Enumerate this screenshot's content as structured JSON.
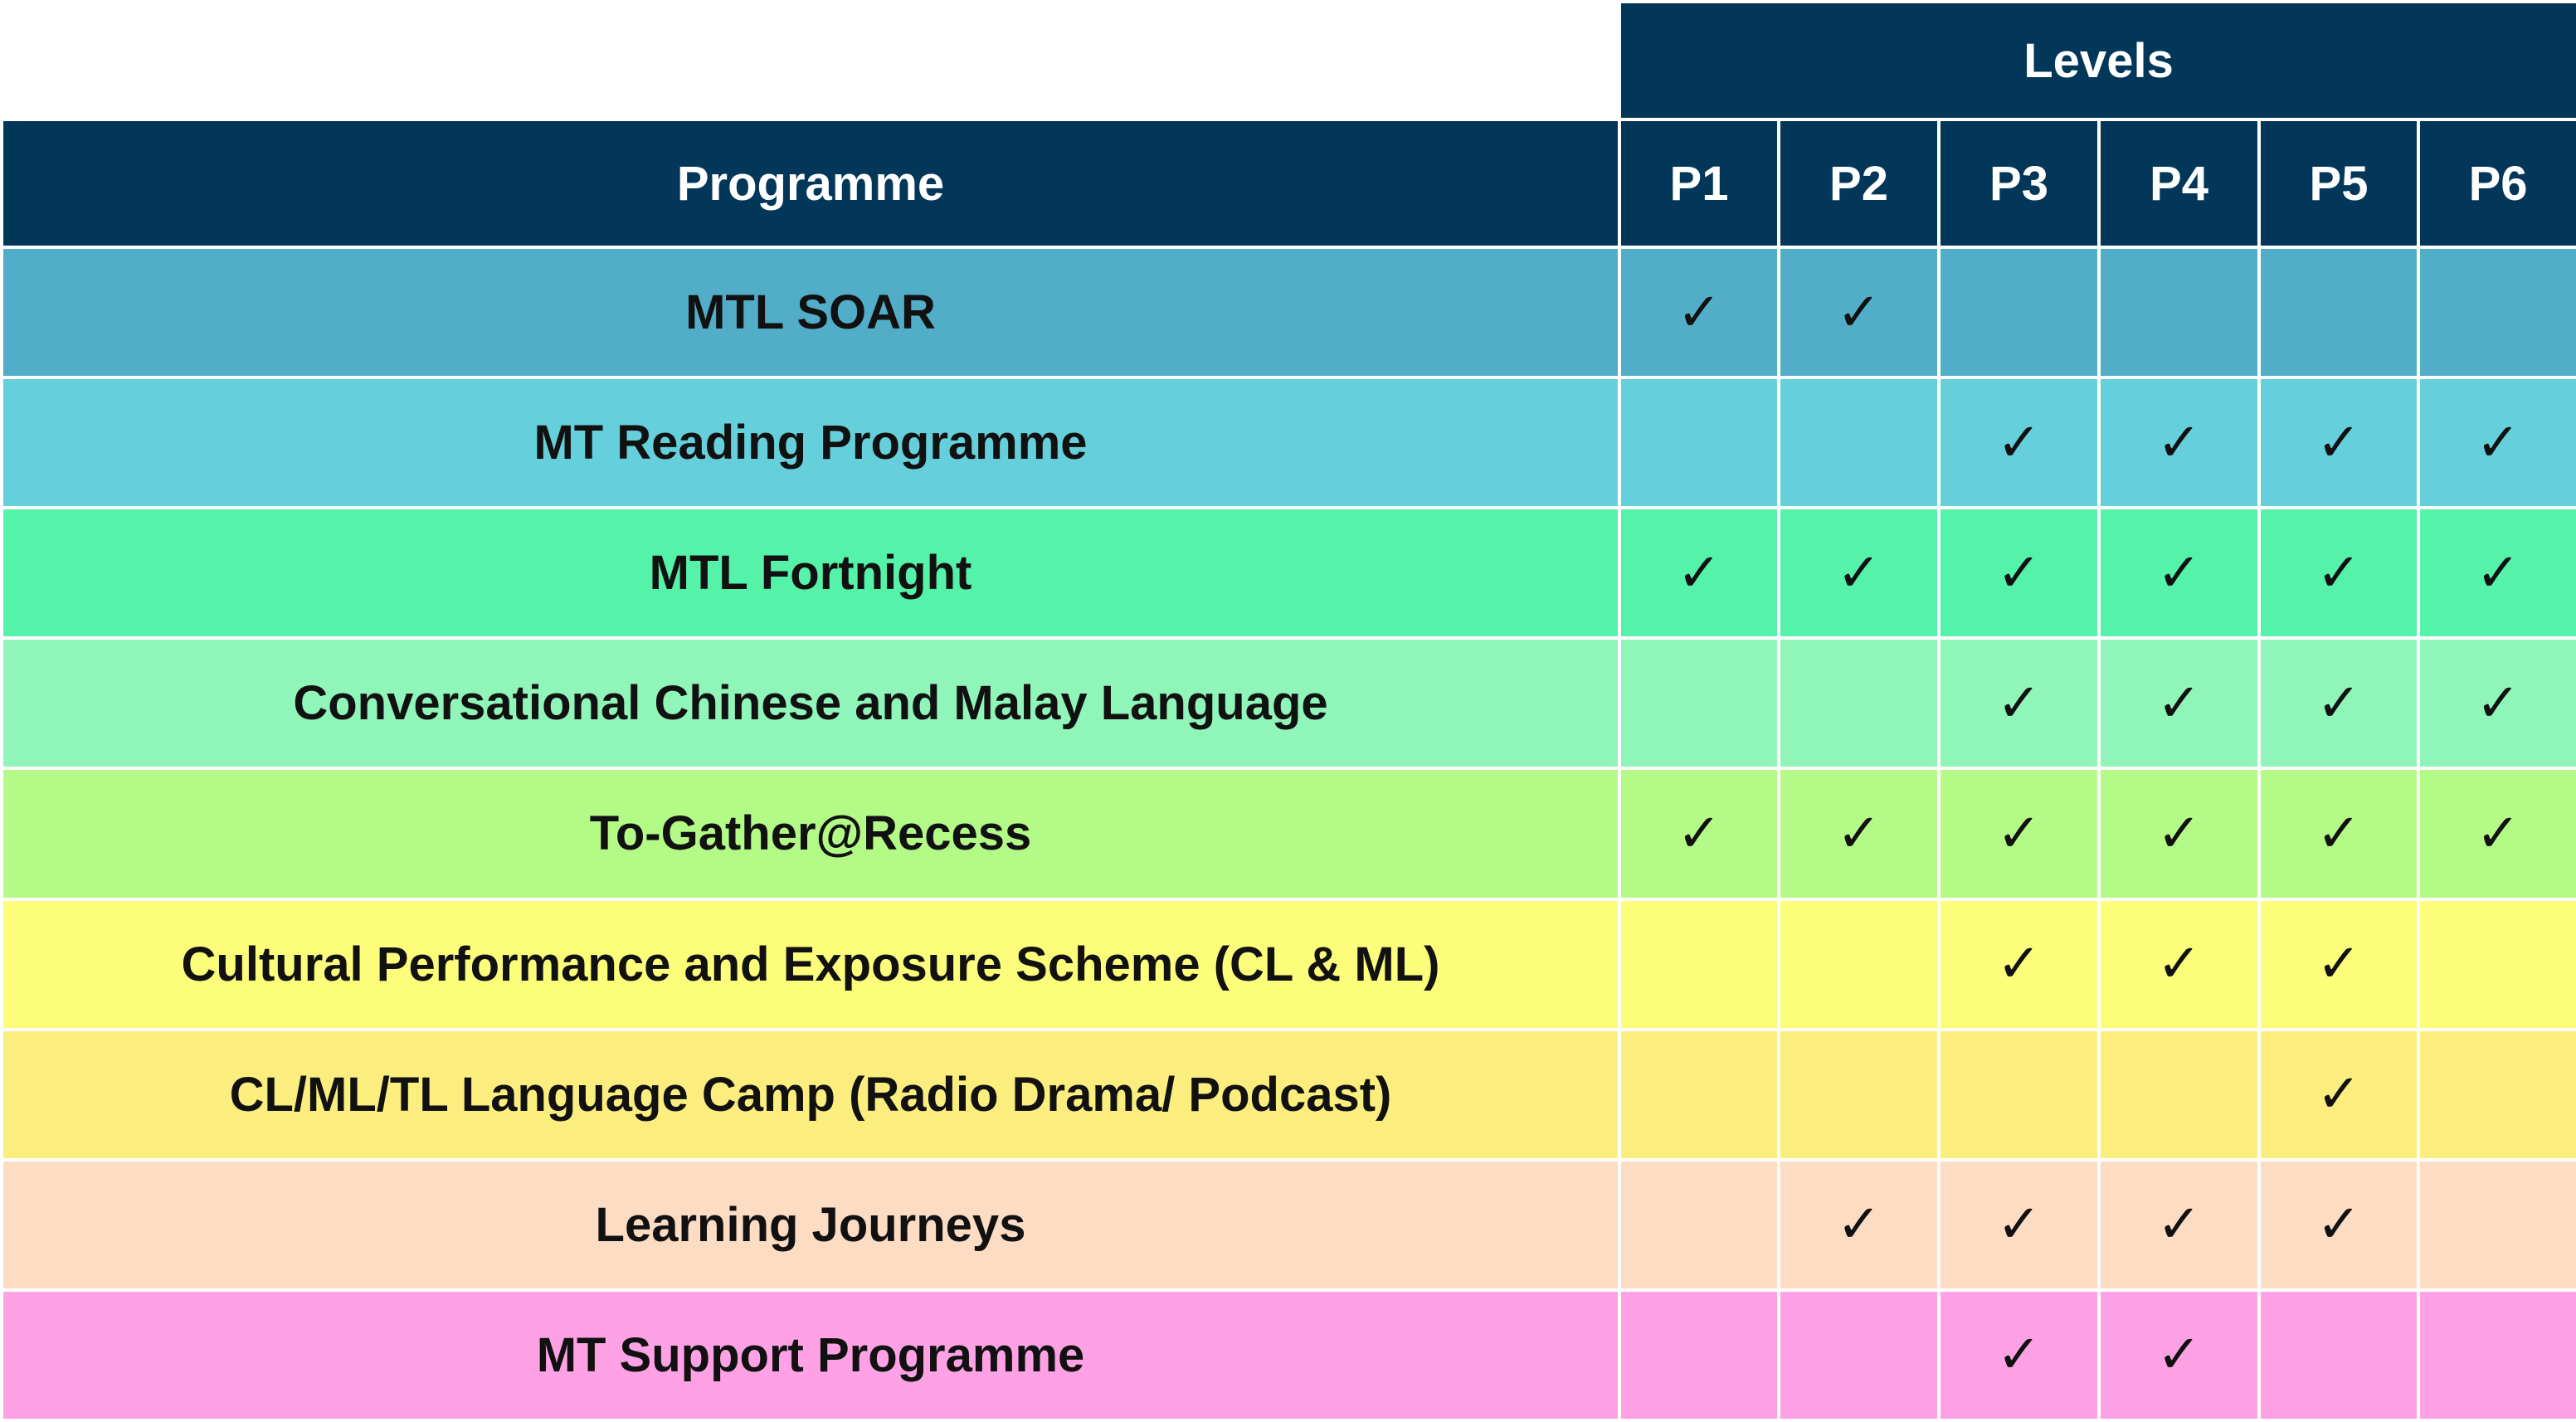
{
  "table": {
    "levels_label": "Levels",
    "programme_label": "Programme",
    "level_headers": [
      "P1",
      "P2",
      "P3",
      "P4",
      "P5",
      "P6"
    ],
    "check_mark": "✓",
    "rows": [
      {
        "programme": "MTL SOAR",
        "color": "#52aec8",
        "levels": [
          true,
          true,
          false,
          false,
          false,
          false
        ]
      },
      {
        "programme": "MT Reading Programme",
        "color": "#66cfdc",
        "levels": [
          false,
          false,
          true,
          true,
          true,
          true
        ]
      },
      {
        "programme": "MTL Fortnight",
        "color": "#55f2a9",
        "levels": [
          true,
          true,
          true,
          true,
          true,
          true
        ]
      },
      {
        "programme": "Conversational Chinese and Malay Language",
        "color": "#8ff5b8",
        "levels": [
          false,
          false,
          true,
          true,
          true,
          true
        ]
      },
      {
        "programme": "To-Gather@Recess",
        "color": "#b4fa86",
        "levels": [
          true,
          true,
          true,
          true,
          true,
          true
        ]
      },
      {
        "programme": "Cultural Performance and Exposure Scheme (CL & ML)",
        "color": "#fcfd7a",
        "levels": [
          false,
          false,
          true,
          true,
          true,
          false
        ]
      },
      {
        "programme": "CL/ML/TL Language Camp (Radio Drama/ Podcast)",
        "color": "#fcee7e",
        "levels": [
          false,
          false,
          false,
          false,
          true,
          false
        ]
      },
      {
        "programme": "Learning Journeys",
        "color": "#fddcc4",
        "levels": [
          false,
          true,
          true,
          true,
          true,
          false
        ]
      },
      {
        "programme": "MT Support Programme",
        "color": "#fea2e5",
        "levels": [
          false,
          false,
          true,
          true,
          false,
          false
        ]
      }
    ]
  }
}
